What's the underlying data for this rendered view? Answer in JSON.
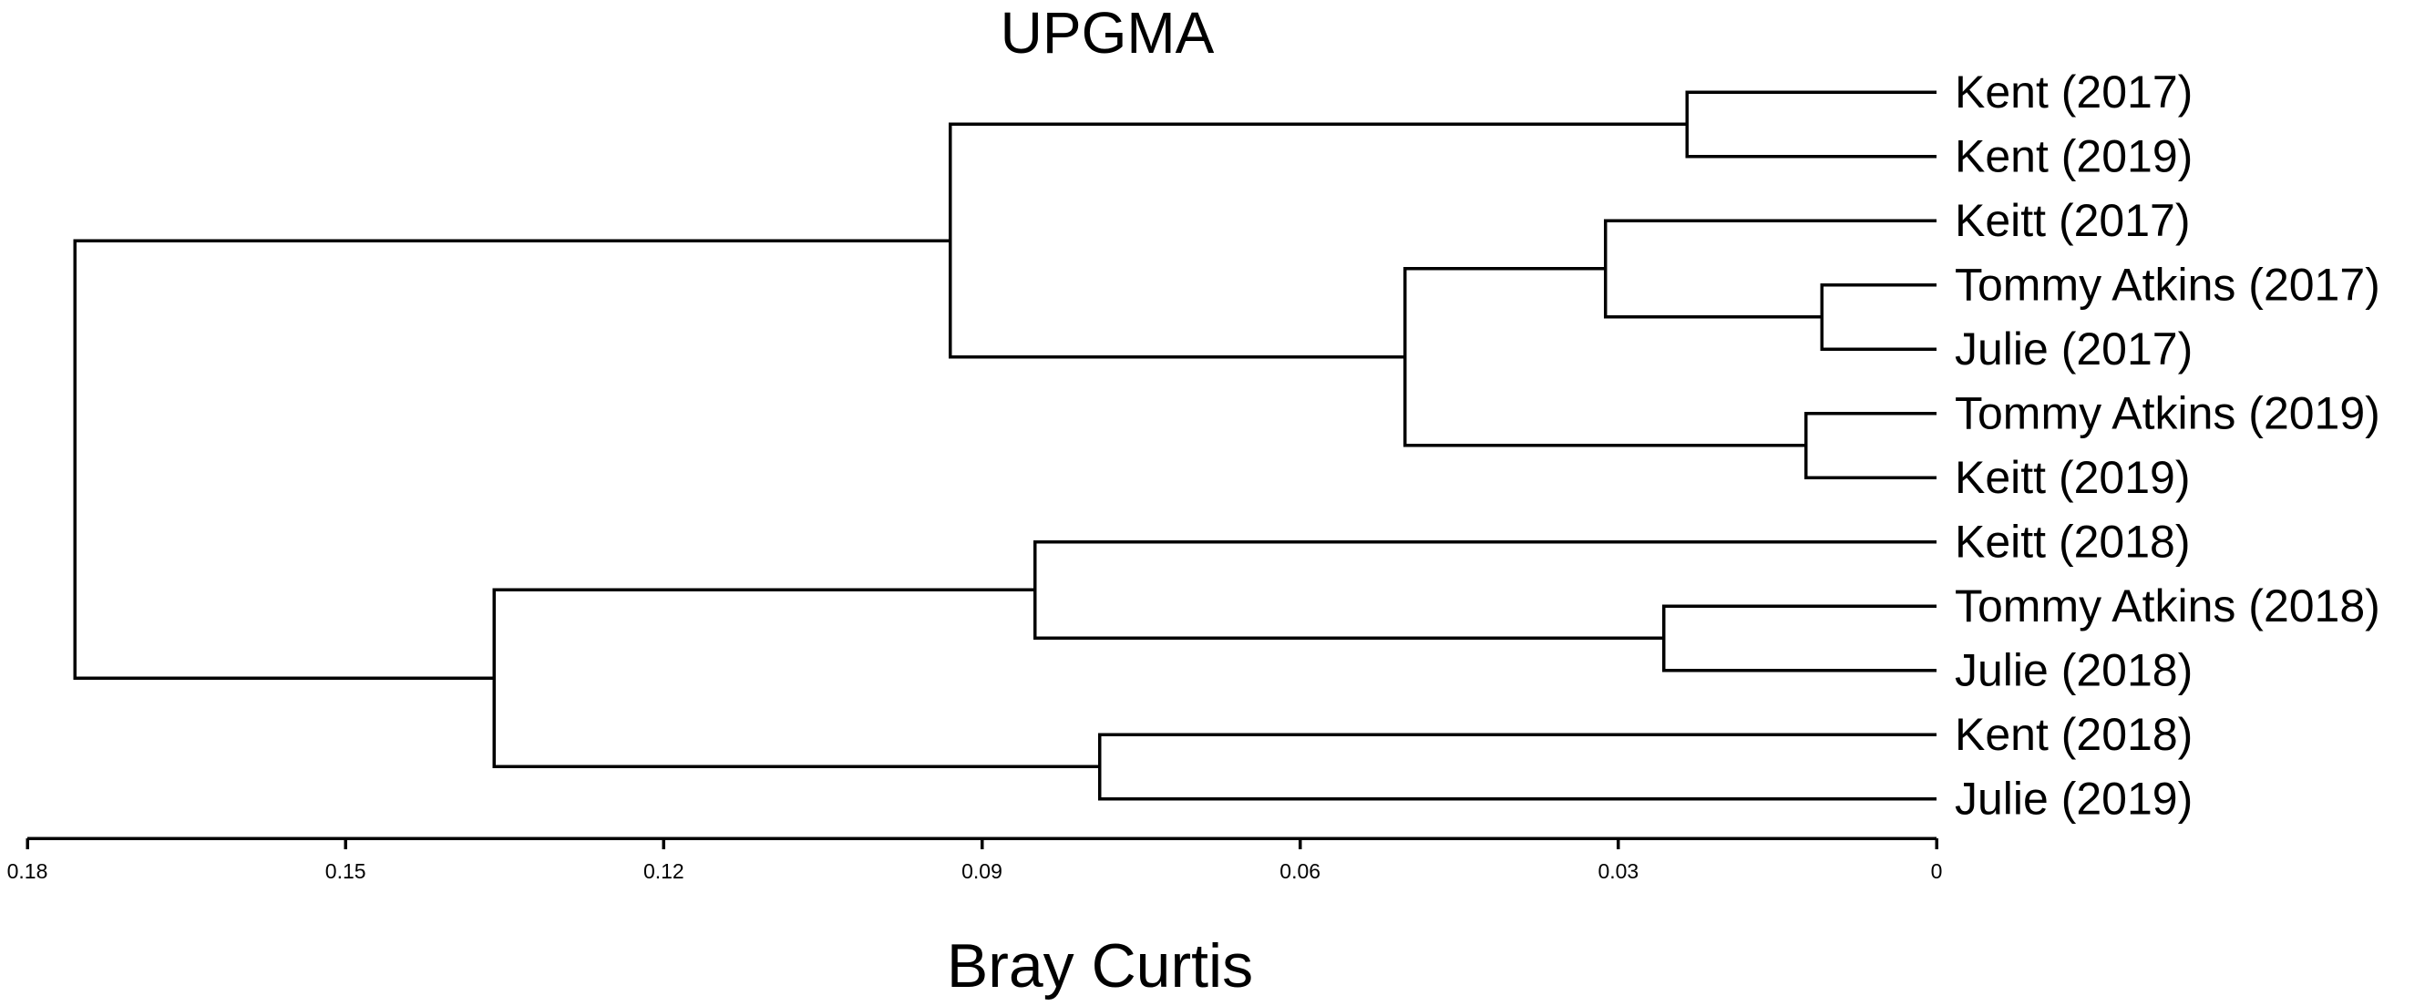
{
  "chart_data": {
    "type": "dendrogram",
    "title": "UPGMA",
    "xlabel": "Bray Curtis",
    "xlim": [
      0.18,
      0
    ],
    "x_ticks": [
      "0.18",
      "0.15",
      "0.12",
      "0.09",
      "0.06",
      "0.03",
      "0"
    ],
    "x_tick_values": [
      0.18,
      0.15,
      0.12,
      0.09,
      0.06,
      0.03,
      0
    ],
    "leaves": [
      "Kent (2017)",
      "Kent (2019)",
      "Keitt (2017)",
      "Tommy Atkins (2017)",
      "Julie (2017)",
      "Tommy Atkins (2019)",
      "Keitt (2019)",
      "Keitt (2018)",
      "Tommy Atkins (2018)",
      "Julie (2018)",
      "Kent (2018)",
      "Julie (2019)"
    ],
    "merges": [
      {
        "id": "n1",
        "left": "Kent (2017)",
        "right": "Kent (2019)",
        "height": 0.0235
      },
      {
        "id": "n2",
        "left": "Tommy Atkins (2017)",
        "right": "Julie (2017)",
        "height": 0.0108
      },
      {
        "id": "n3",
        "left": "Keitt (2017)",
        "right": "n2",
        "height": 0.0312
      },
      {
        "id": "n4",
        "left": "Tommy Atkins (2019)",
        "right": "Keitt (2019)",
        "height": 0.0123
      },
      {
        "id": "n5",
        "left": "n3",
        "right": "n4",
        "height": 0.0501
      },
      {
        "id": "n6",
        "left": "n1",
        "right": "n5",
        "height": 0.093
      },
      {
        "id": "n7",
        "left": "Tommy Atkins (2018)",
        "right": "Julie (2018)",
        "height": 0.0257
      },
      {
        "id": "n8",
        "left": "Keitt (2018)",
        "right": "n7",
        "height": 0.085
      },
      {
        "id": "n9",
        "left": "Kent (2018)",
        "right": "Julie (2019)",
        "height": 0.0789
      },
      {
        "id": "n10",
        "left": "n8",
        "right": "n9",
        "height": 0.136
      },
      {
        "id": "n11",
        "left": "n6",
        "right": "n10",
        "height": 0.1755
      }
    ]
  }
}
